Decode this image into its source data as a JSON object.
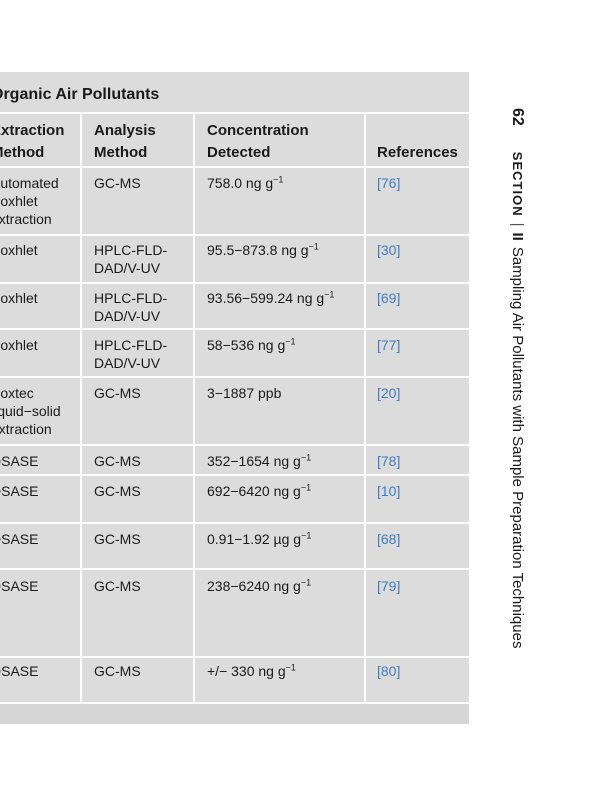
{
  "table": {
    "title": "Organic Air Pollutants",
    "headers": {
      "extraction": "Extraction\nMethod",
      "analysis": "Analysis\nMethod",
      "concentration": "Concentration\nDetected",
      "references": "References"
    },
    "rows": [
      {
        "extraction": "Automated\nSoxhlet\nextraction",
        "analysis": "GC-MS",
        "concentration": "758.0 ng g",
        "unit_exp": "−1",
        "reference": "[76]"
      },
      {
        "extraction": "Soxhlet",
        "analysis": "HPLC-FLD-\nDAD/V-UV",
        "concentration": "95.5−873.8 ng g",
        "unit_exp": "−1",
        "reference": "[30]"
      },
      {
        "extraction": "Soxhlet",
        "analysis": "HPLC-FLD-\nDAD/V-UV",
        "concentration": "93.56−599.24 ng g",
        "unit_exp": "−1",
        "reference": "[69]"
      },
      {
        "extraction": "Soxhlet",
        "analysis": "HPLC-FLD-\nDAD/V-UV",
        "concentration": "58−536 ng g",
        "unit_exp": "−1",
        "reference": "[77]"
      },
      {
        "extraction": "Soxtec\nliquid−solid\nextraction",
        "analysis": "GC-MS",
        "concentration": "3−1887 ppb",
        "unit_exp": "",
        "reference": "[20]"
      },
      {
        "extraction": "DSASE",
        "analysis": "GC-MS",
        "concentration": "352−1654 ng g",
        "unit_exp": "−1",
        "reference": "[78]"
      },
      {
        "extraction": "DSASE",
        "analysis": "GC-MS",
        "concentration": "692−6420 ng g",
        "unit_exp": "−1",
        "reference": "[10]"
      },
      {
        "extraction": "DSASE",
        "analysis": "GC-MS",
        "concentration": "0.91−1.92 µg g",
        "unit_exp": "−1",
        "reference": "[68]"
      },
      {
        "extraction": "DSASE",
        "analysis": "GC-MS",
        "concentration": "238−6240 ng g",
        "unit_exp": "−1",
        "reference": "[79]"
      },
      {
        "extraction": "DSASE",
        "analysis": "GC-MS",
        "concentration": "+/− 330 ng g",
        "unit_exp": "−1",
        "reference": "[80]"
      }
    ]
  },
  "running_head": {
    "page_number": "62",
    "section_word": "SECTION",
    "section_number": "II",
    "section_title": "Sampling Air Pollutants with Sample Preparation Techniques"
  }
}
